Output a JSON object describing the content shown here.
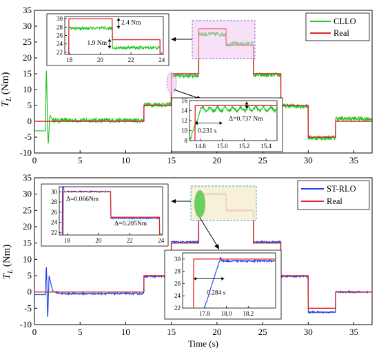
{
  "chart_data": [
    {
      "type": "line",
      "ylabel_main": "T",
      "ylabel_sub": "L",
      "ylabel_unit": " (Nm)",
      "xlim": [
        0,
        37
      ],
      "ylim": [
        -10,
        35
      ],
      "xticks": [
        "0",
        "5",
        "10",
        "15",
        "20",
        "25",
        "30",
        "35"
      ],
      "yticks": [
        "-10",
        "-5",
        "0",
        "5",
        "10",
        "15",
        "20",
        "25",
        "30",
        "35"
      ],
      "legend": "top-right",
      "series": [
        {
          "name": "CLLO",
          "color": "#22c422"
        },
        {
          "name": "Real",
          "color": "#e0242a"
        }
      ],
      "real_profile": [
        [
          0,
          0
        ],
        [
          12,
          0
        ],
        [
          12,
          5
        ],
        [
          15,
          5
        ],
        [
          15,
          15
        ],
        [
          18,
          15
        ],
        [
          18,
          29.2
        ],
        [
          21,
          29.2
        ],
        [
          21,
          24
        ],
        [
          24,
          24
        ],
        [
          24,
          15
        ],
        [
          27,
          15
        ],
        [
          27,
          5
        ],
        [
          30,
          5
        ],
        [
          30,
          -5
        ],
        [
          33,
          -5
        ],
        [
          33,
          0
        ],
        [
          37,
          0
        ]
      ],
      "estimate_profile": [
        [
          0,
          -3
        ],
        [
          1.2,
          -3
        ],
        [
          1.3,
          18
        ],
        [
          1.5,
          -8
        ],
        [
          1.7,
          2
        ],
        [
          2,
          0.3
        ],
        [
          12,
          0.3
        ],
        [
          12,
          5.3
        ],
        [
          15,
          5.3
        ],
        [
          15,
          14.4
        ],
        [
          18,
          14.4
        ],
        [
          18,
          27.5
        ],
        [
          21,
          27.5
        ],
        [
          21,
          24.4
        ],
        [
          24,
          24.4
        ],
        [
          24,
          14.6
        ],
        [
          27,
          14.6
        ],
        [
          27,
          4.8
        ],
        [
          30,
          4.8
        ],
        [
          30,
          -5.2
        ],
        [
          33,
          -5.2
        ],
        [
          33,
          0.8
        ],
        [
          37,
          0.8
        ]
      ],
      "noise": 0.7,
      "insets": [
        {
          "xlim": [
            17.7,
            24.1
          ],
          "ylim": [
            21.5,
            30.5
          ],
          "xticks": [
            "18",
            "20",
            "22",
            "24"
          ],
          "yticks": [
            "22",
            "24",
            "26",
            "28",
            "30"
          ],
          "annotations": [
            "2.4 Nm",
            "1.9 Nm"
          ]
        },
        {
          "xlim": [
            14.7,
            15.5
          ],
          "ylim": [
            8,
            16
          ],
          "xticks": [
            "14.8",
            "15.0",
            "15.2",
            "15.4"
          ],
          "yticks": [
            "8",
            "10",
            "12",
            "14",
            "16"
          ],
          "annotations": [
            "Δ=0.737 Nm",
            "0.231 s"
          ]
        }
      ]
    },
    {
      "type": "line",
      "ylabel_main": "T",
      "ylabel_sub": "L",
      "ylabel_unit": " (Nm)",
      "xlabel": "Time (s)",
      "xlim": [
        0,
        37
      ],
      "ylim": [
        -10,
        35
      ],
      "xticks": [
        "0",
        "5",
        "10",
        "15",
        "20",
        "25",
        "30",
        "35"
      ],
      "yticks": [
        "-10",
        "-5",
        "0",
        "5",
        "10",
        "15",
        "20",
        "25",
        "30",
        "35"
      ],
      "legend": "top-right",
      "series": [
        {
          "name": "ST-RLO",
          "color": "#2046e0"
        },
        {
          "name": "Real",
          "color": "#e0242a"
        }
      ],
      "real_profile": [
        [
          0,
          0
        ],
        [
          12,
          0
        ],
        [
          12,
          5
        ],
        [
          15,
          5
        ],
        [
          15,
          15
        ],
        [
          18,
          15
        ],
        [
          18,
          30
        ],
        [
          21,
          30
        ],
        [
          21,
          25
        ],
        [
          24,
          25
        ],
        [
          24,
          15
        ],
        [
          27,
          15
        ],
        [
          27,
          5
        ],
        [
          30,
          5
        ],
        [
          30,
          -5
        ],
        [
          33,
          -5
        ],
        [
          33,
          0
        ],
        [
          37,
          0
        ]
      ],
      "estimate_profile": [
        [
          0,
          -0.8
        ],
        [
          1.2,
          -0.8
        ],
        [
          1.3,
          9.5
        ],
        [
          1.45,
          -9
        ],
        [
          1.6,
          5
        ],
        [
          2,
          0.2
        ],
        [
          3,
          -0.5
        ],
        [
          12,
          -0.5
        ],
        [
          12,
          4.8
        ],
        [
          15,
          4.8
        ],
        [
          15,
          15.3
        ],
        [
          18,
          15.3
        ],
        [
          18,
          30
        ],
        [
          21,
          30
        ],
        [
          21,
          25
        ],
        [
          24,
          25
        ],
        [
          24,
          15.3
        ],
        [
          27,
          15.3
        ],
        [
          27,
          4.8
        ],
        [
          30,
          4.8
        ],
        [
          30,
          -6.2
        ],
        [
          33,
          -6.2
        ],
        [
          33,
          0
        ],
        [
          37,
          0
        ]
      ],
      "noise": 0.25,
      "insets": [
        {
          "xlim": [
            17.5,
            24.1
          ],
          "ylim": [
            21.5,
            31
          ],
          "xticks": [
            "18",
            "20",
            "22",
            "24"
          ],
          "yticks": [
            "22",
            "24",
            "26",
            "28",
            "30"
          ],
          "annotations": [
            "Δ=0.066Nm",
            "Δ=0.205Nm"
          ]
        },
        {
          "xlim": [
            17.6,
            18.45
          ],
          "ylim": [
            22,
            31
          ],
          "xticks": [
            "17.8",
            "18.0",
            "18.2"
          ],
          "yticks": [
            "22",
            "24",
            "26",
            "28",
            "30"
          ],
          "annotations": [
            "0.284 s"
          ]
        }
      ]
    }
  ]
}
